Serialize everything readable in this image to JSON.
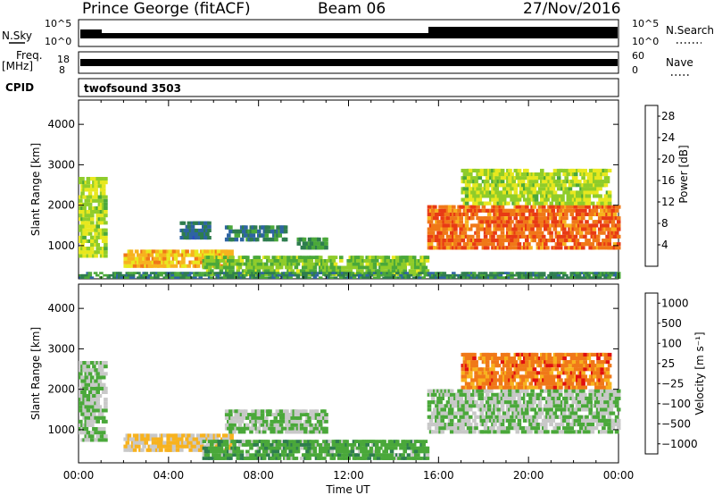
{
  "header": {
    "station": "Prince George (fitACF)",
    "beam": "Beam 06",
    "date": "27/Nov/2016"
  },
  "aux": {
    "nsky_label": "N.Sky",
    "nsky_ticks": [
      "10^5",
      "10^0"
    ],
    "nsearch_label": "N.Search",
    "nsearch_ticks": [
      "10^5",
      "10^0"
    ],
    "freq_label": "Freq.",
    "freq_unit": "[MHz]",
    "freq_ticks": [
      "18",
      "8"
    ],
    "nave_label": "Nave",
    "nave_ticks": [
      "60",
      "0"
    ],
    "cpid_label": "CPID",
    "cpid_value": "twofsound 3503"
  },
  "chart_data": [
    {
      "type": "heatmap",
      "title": "",
      "xlabel": "",
      "ylabel": "Slant Range [km]",
      "xlim": [
        "00:00",
        "24:00"
      ],
      "ylim": [
        180,
        4600
      ],
      "yticks": [
        "1000",
        "2000",
        "3000",
        "4000"
      ],
      "xticks": [
        "00:00",
        "04:00",
        "08:00",
        "12:00",
        "16:00",
        "20:00",
        "00:00"
      ],
      "colorbar": {
        "label": "Power [dB]",
        "ticks": [
          "4",
          "8",
          "12",
          "16",
          "20",
          "24",
          "28"
        ],
        "range": [
          0,
          30
        ],
        "colors": [
          "#0a18e6",
          "#2b48c8",
          "#2e64a2",
          "#2e7d4e",
          "#4aa83a",
          "#8fcc2a",
          "#e8e81e",
          "#f7b21e",
          "#f07818",
          "#e83a14",
          "#e00f0f"
        ]
      },
      "regions": [
        {
          "t0": 0.0,
          "t1": 1.2,
          "r0": 700,
          "r1": 2700,
          "value": 16
        },
        {
          "t0": 2.0,
          "t1": 6.8,
          "r0": 450,
          "r1": 900,
          "value": 20
        },
        {
          "t0": 4.5,
          "t1": 5.8,
          "r0": 1150,
          "r1": 1600,
          "value": 8
        },
        {
          "t0": 6.5,
          "t1": 9.2,
          "r0": 1100,
          "r1": 1500,
          "value": 9
        },
        {
          "t0": 9.7,
          "t1": 11.0,
          "r0": 900,
          "r1": 1200,
          "value": 11
        },
        {
          "t0": 5.5,
          "t1": 15.5,
          "r0": 250,
          "r1": 750,
          "value": 14
        },
        {
          "t0": 15.5,
          "t1": 24.0,
          "r0": 900,
          "r1": 2000,
          "value": 24
        },
        {
          "t0": 17.0,
          "t1": 23.6,
          "r0": 2000,
          "r1": 2900,
          "value": 16
        },
        {
          "t0": 0.0,
          "t1": 24.0,
          "r0": 180,
          "r1": 350,
          "value": 10
        }
      ]
    },
    {
      "type": "heatmap",
      "title": "",
      "xlabel": "Time UT",
      "ylabel": "Slant Range [km]",
      "xlim": [
        "00:00",
        "24:00"
      ],
      "ylim": [
        180,
        4600
      ],
      "yticks": [
        "1000",
        "2000",
        "3000",
        "4000"
      ],
      "xticks": [
        "00:00",
        "04:00",
        "08:00",
        "12:00",
        "16:00",
        "20:00",
        "00:00"
      ],
      "colorbar": {
        "label": "Velocity [m s⁻¹]",
        "ticks": [
          "1000",
          "500",
          "100",
          "25",
          "−25",
          "−100",
          "−500",
          "−1000"
        ],
        "range": [
          -1000,
          1000
        ],
        "colors": [
          "#e00f0f",
          "#f07818",
          "#f7b21e",
          "#c8c8c8",
          "#4aa83a",
          "#2e7d4e",
          "#2e64a2",
          "#0a18e6"
        ]
      },
      "regions": [
        {
          "t0": 0.0,
          "t1": 1.2,
          "r0": 700,
          "r1": 2700,
          "value": 0
        },
        {
          "t0": 2.0,
          "t1": 6.8,
          "r0": 450,
          "r1": 900,
          "value": -300
        },
        {
          "t0": 6.5,
          "t1": 11.0,
          "r0": 900,
          "r1": 1500,
          "value": 0
        },
        {
          "t0": 5.5,
          "t1": 15.5,
          "r0": 250,
          "r1": 750,
          "value": 150
        },
        {
          "t0": 15.5,
          "t1": 24.0,
          "r0": 900,
          "r1": 2000,
          "value": 0
        },
        {
          "t0": 17.0,
          "t1": 23.6,
          "r0": 2000,
          "r1": 2900,
          "value": -600
        }
      ]
    }
  ]
}
